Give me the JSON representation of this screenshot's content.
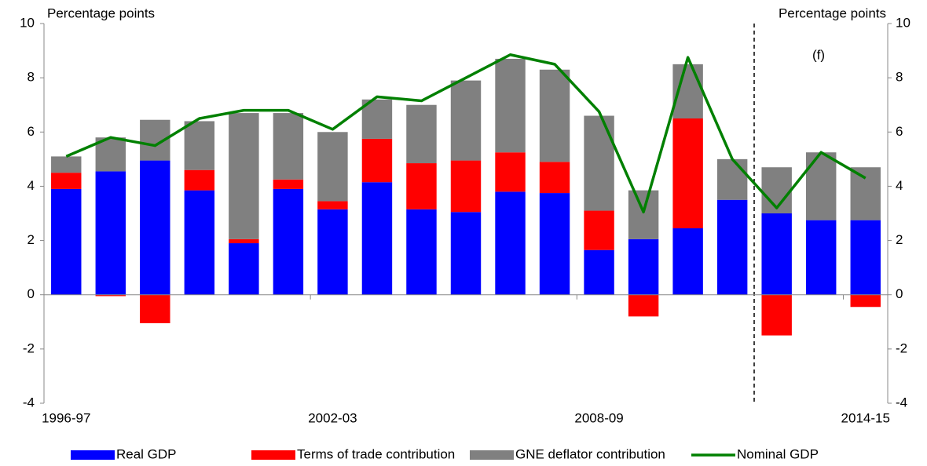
{
  "chart_data": {
    "type": "bar",
    "stacked": true,
    "y_label": "Percentage points",
    "y2_label": "Percentage points",
    "annotation": "(f)",
    "categories": [
      "1996-97",
      null,
      null,
      null,
      null,
      null,
      "2002-03",
      null,
      null,
      null,
      null,
      null,
      "2008-09",
      null,
      null,
      null,
      null,
      null,
      "2014-15"
    ],
    "series": [
      {
        "name": "Real GDP",
        "type": "bar",
        "color": "#0000ff",
        "values": [
          3.9,
          4.55,
          4.95,
          3.85,
          1.9,
          3.9,
          3.15,
          4.15,
          3.15,
          3.05,
          3.8,
          3.75,
          1.65,
          2.05,
          2.45,
          3.5,
          3.0,
          2.75,
          2.75
        ]
      },
      {
        "name": "Terms of trade contribution",
        "type": "bar",
        "color": "#ff0000",
        "values": [
          0.6,
          -0.05,
          -1.05,
          0.75,
          0.15,
          0.35,
          0.3,
          1.6,
          1.7,
          1.9,
          1.45,
          1.15,
          1.45,
          -0.8,
          4.05,
          0,
          -1.5,
          0,
          -0.45
        ]
      },
      {
        "name": "GNE deflator contribution",
        "type": "bar",
        "color": "#808080",
        "values": [
          0.6,
          1.25,
          1.5,
          1.8,
          4.65,
          2.45,
          2.55,
          1.45,
          2.15,
          2.95,
          3.45,
          3.4,
          3.5,
          1.8,
          2.0,
          1.5,
          1.7,
          2.5,
          1.95
        ]
      },
      {
        "name": "Nominal GDP",
        "type": "line",
        "color": "#008000",
        "values": [
          5.1,
          5.8,
          5.5,
          6.5,
          6.8,
          6.8,
          6.1,
          7.3,
          7.15,
          8.0,
          8.85,
          8.5,
          6.75,
          3.05,
          8.75,
          5.0,
          3.2,
          5.25,
          4.3
        ]
      }
    ],
    "ylim": [
      -4,
      10
    ],
    "yticks": [
      -4,
      -2,
      0,
      2,
      4,
      6,
      8,
      10
    ],
    "y2lim": [
      -4,
      10
    ],
    "y2ticks": [
      -4,
      -2,
      0,
      2,
      4,
      6,
      8,
      10
    ],
    "grid": false,
    "legend": "bottom"
  }
}
